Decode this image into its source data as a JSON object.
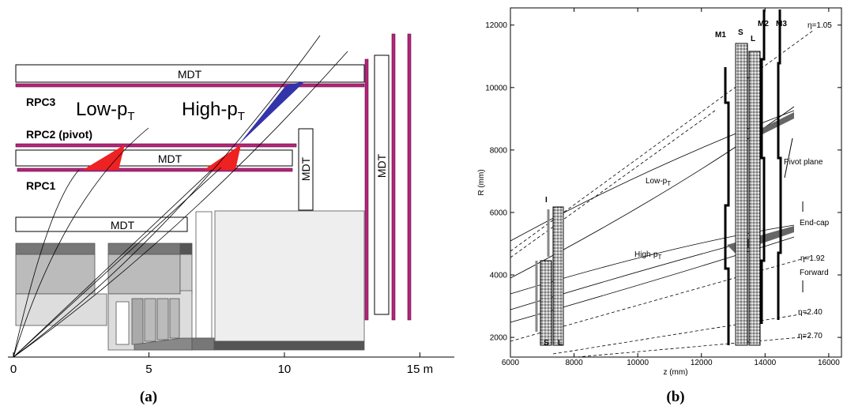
{
  "panel_a": {
    "mdt_top": "MDT",
    "mdt_middle": "MDT",
    "mdt_bottom": "MDT",
    "mdt_vertical_small": "MDT",
    "mdt_vertical_tall": "MDT",
    "rpc3": "RPC3",
    "rpc2": "RPC2 (pivot)",
    "rpc1": "RPC1",
    "low_pt": {
      "text": "Low-p",
      "sub": "T"
    },
    "high_pt": {
      "text": "High-p",
      "sub": "T"
    },
    "xlim": [
      0,
      16.3
    ],
    "xticks": [
      0,
      5,
      10,
      {
        "value": 15,
        "label": "15 m"
      }
    ],
    "caption": "(a)"
  },
  "panel_b": {
    "x_label": "z (mm)",
    "y_label": "R (mm)",
    "xlim": [
      6000,
      16400
    ],
    "ylim": [
      1370,
      12550
    ],
    "xticks": [
      6000,
      8000,
      10000,
      12000,
      14000,
      16000
    ],
    "yticks": [
      2000,
      4000,
      6000,
      8000,
      10000,
      12000
    ],
    "station_labels": [
      "I",
      "S",
      "L",
      "M1",
      "S",
      "L",
      "M2",
      "M3"
    ],
    "eta_labels": [
      "η=1.05",
      "η=1.92",
      "η=2.40",
      "η=2.70"
    ],
    "low_pt": {
      "text": "Low-p",
      "sub": "T"
    },
    "high_pt": {
      "text": "High-p",
      "sub": "T"
    },
    "pivot_plane": "Pivot plane",
    "end_cap": "End-cap",
    "forward": "Forward",
    "caption": "(b)"
  }
}
